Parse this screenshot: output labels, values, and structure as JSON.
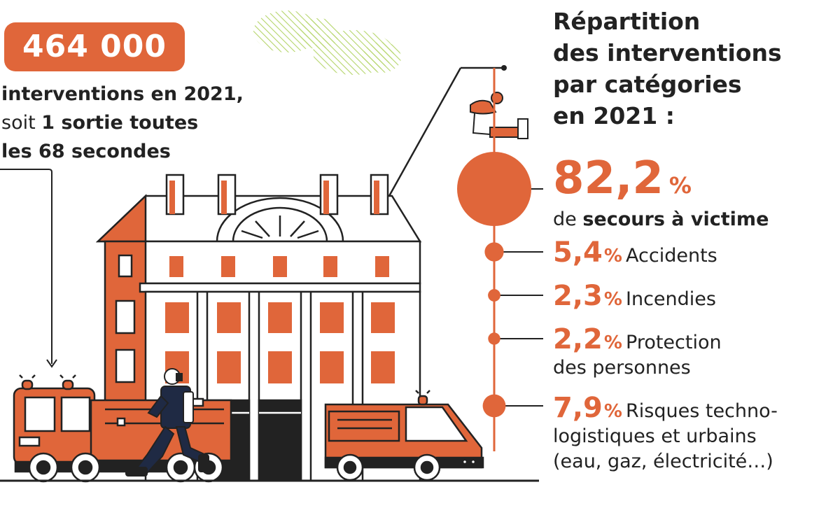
{
  "colors": {
    "accent": "#e0663a",
    "ink": "#222222",
    "green": "#b5d56a"
  },
  "headline": {
    "number": "464 000",
    "line1": "interventions en 2021,",
    "line2_regular": "soit ",
    "line2_bold": "1 sortie toutes",
    "line3": "les 68 secondes"
  },
  "chart_title_lines": [
    "Répartition",
    "des interventions",
    "par catégories",
    "en 2021 :"
  ],
  "chart_data": {
    "type": "bubble",
    "title": "Répartition des interventions par catégories en 2021 :",
    "unit": "%",
    "categories": [
      {
        "value_label": "82,2",
        "value": 82.2,
        "label_prefix": "de ",
        "label_bold": "secours à victime",
        "label_lines": []
      },
      {
        "value_label": "5,4",
        "value": 5.4,
        "label_lines": [
          "Accidents"
        ]
      },
      {
        "value_label": "2,3",
        "value": 2.3,
        "label_lines": [
          "Incendies"
        ]
      },
      {
        "value_label": "2,2",
        "value": 2.2,
        "label_lines": [
          "Protection",
          "des personnes"
        ]
      },
      {
        "value_label": "7,9",
        "value": 7.9,
        "label_lines": [
          "Risques techno-",
          "logistiques et urbains",
          "(eau, gaz, électricité…)"
        ]
      }
    ]
  }
}
